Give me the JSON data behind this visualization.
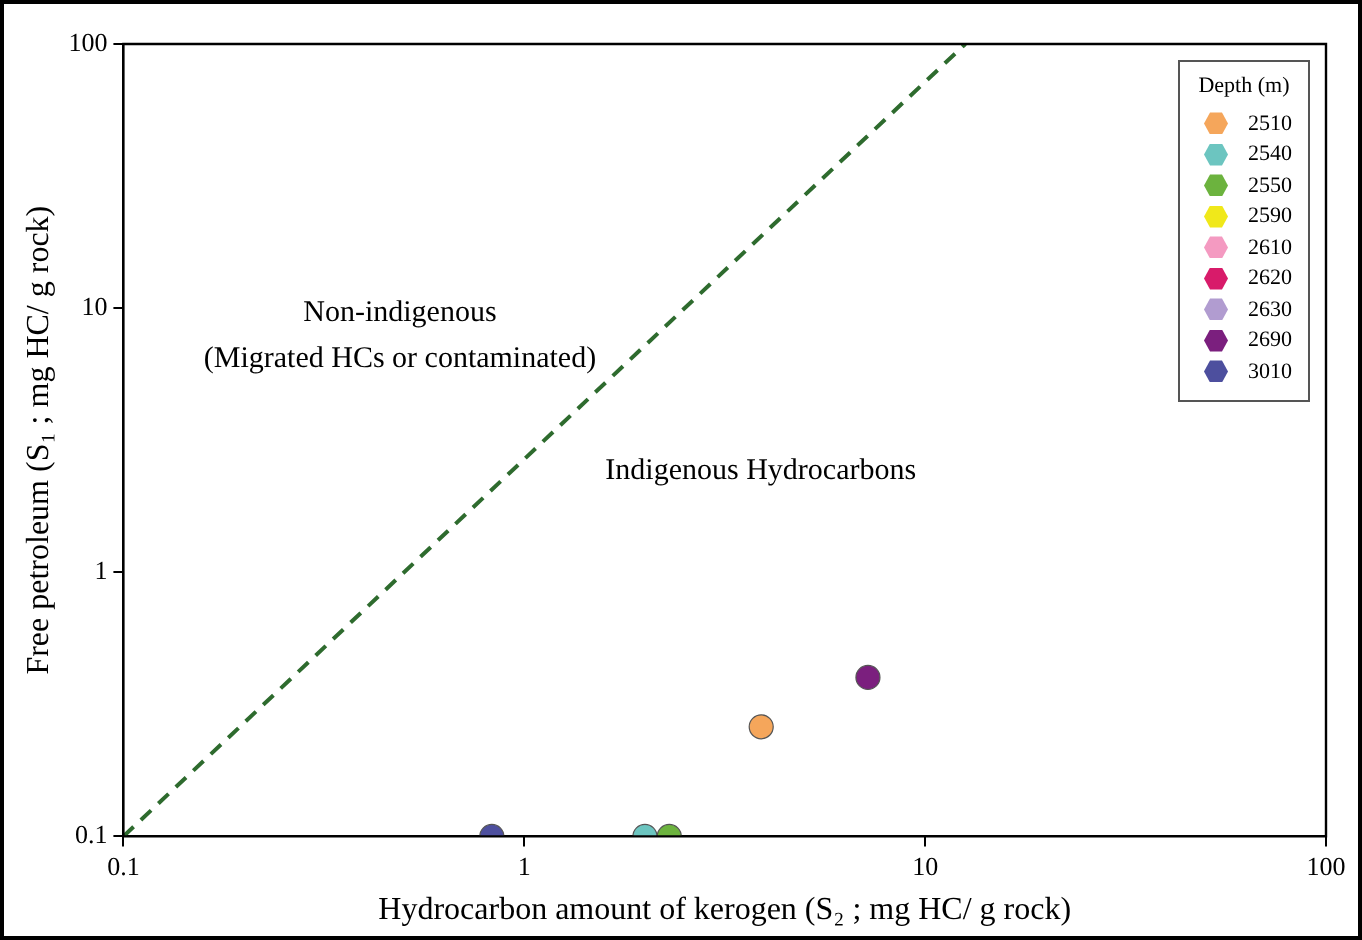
{
  "chart_data": {
    "type": "scatter",
    "xlabel": "Hydrocarbon amount of kerogen (S₂ ; mg HC/ g rock)",
    "ylabel": "Free petroleum (S₁ ; mg HC/ g rock)",
    "legend_title": "Depth (m)",
    "log": "xy",
    "xlim": [
      0.1,
      100
    ],
    "ylim": [
      0.1,
      100
    ],
    "xticks": [
      0.1,
      1,
      10,
      100
    ],
    "yticks": [
      0.1,
      1,
      10,
      100
    ],
    "grid": false,
    "legend": "top right",
    "marker": "circle",
    "annotations": [
      "Non-indigenous",
      "(Migrated HCs or contaminated)",
      "Indigenous Hydrocarbons"
    ],
    "series": [
      {
        "name": "2510",
        "color": "#f5a65b",
        "x": [
          3.9
        ],
        "values": [
          0.26
        ]
      },
      {
        "name": "2540",
        "color": "#6cc5c0",
        "x": [
          2.0
        ],
        "values": [
          0.1
        ]
      },
      {
        "name": "2550",
        "color": "#6cb33e",
        "x": [
          2.3
        ],
        "values": [
          0.1
        ]
      },
      {
        "name": "2590",
        "color": "#f0e81a"
      },
      {
        "name": "2610",
        "color": "#f49ac1"
      },
      {
        "name": "2620",
        "color": "#d81b6a"
      },
      {
        "name": "2630",
        "color": "#b19cd0"
      },
      {
        "name": "2690",
        "color": "#7b1f7e",
        "x": [
          7.2
        ],
        "values": [
          0.4
        ]
      },
      {
        "name": "3010",
        "color": "#4d4f9e",
        "x": [
          0.83
        ],
        "values": [
          0.1
        ]
      },
      {
        "type": "line",
        "color": "#2e6b2e",
        "line_style": "dashed",
        "marker": "none",
        "x": [
          0.1,
          12.6
        ],
        "values": [
          0.1,
          100
        ]
      }
    ]
  }
}
